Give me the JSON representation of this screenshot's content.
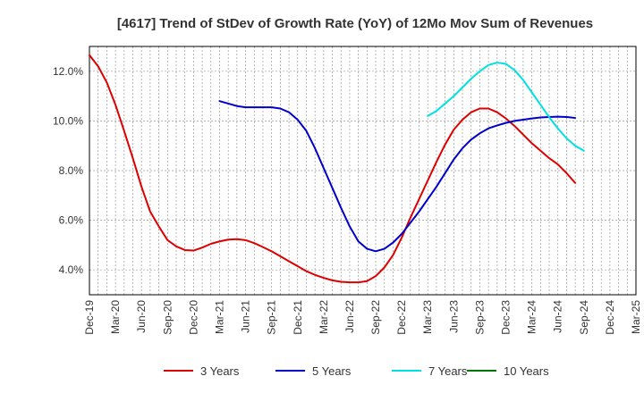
{
  "chart_data": {
    "type": "line",
    "title": "[4617]  Trend of StDev of Growth Rate (YoY) of 12Mo Mov Sum of Revenues",
    "xlabel": "",
    "ylabel": "",
    "ylim": [
      3.0,
      13.0
    ],
    "yticks": [
      4.0,
      6.0,
      8.0,
      10.0,
      12.0
    ],
    "ytick_labels": [
      "4.0%",
      "6.0%",
      "8.0%",
      "10.0%",
      "12.0%"
    ],
    "x_start": "Dec-19",
    "x_end": "Mar-25",
    "n_months": 63,
    "xtick_labels": [
      "Dec-19",
      "Mar-20",
      "Jun-20",
      "Sep-20",
      "Dec-20",
      "Mar-21",
      "Jun-21",
      "Sep-21",
      "Dec-21",
      "Mar-22",
      "Jun-22",
      "Sep-22",
      "Dec-22",
      "Mar-23",
      "Jun-23",
      "Sep-23",
      "Dec-23",
      "Mar-24",
      "Jun-24",
      "Sep-24",
      "Dec-24",
      "Mar-25"
    ],
    "grid": true,
    "legend_position": "bottom",
    "series": [
      {
        "name": "3 Years",
        "color": "#dd0000",
        "start_index": 0,
        "values": [
          12.65,
          12.2,
          11.55,
          10.65,
          9.6,
          8.5,
          7.35,
          6.35,
          5.75,
          5.2,
          4.95,
          4.8,
          4.78,
          4.9,
          5.05,
          5.15,
          5.22,
          5.24,
          5.2,
          5.08,
          4.92,
          4.75,
          4.55,
          4.35,
          4.15,
          3.95,
          3.8,
          3.68,
          3.58,
          3.52,
          3.5,
          3.5,
          3.55,
          3.75,
          4.1,
          4.6,
          5.3,
          6.1,
          6.85,
          7.6,
          8.35,
          9.05,
          9.65,
          10.05,
          10.35,
          10.5,
          10.5,
          10.35,
          10.1,
          9.8,
          9.45,
          9.1,
          8.8,
          8.5,
          8.25,
          7.9,
          7.5
        ]
      },
      {
        "name": "5 Years",
        "color": "#0000cc",
        "start_index": 15,
        "values": [
          10.8,
          10.7,
          10.6,
          10.55,
          10.55,
          10.55,
          10.55,
          10.5,
          10.35,
          10.05,
          9.6,
          8.9,
          8.1,
          7.3,
          6.5,
          5.75,
          5.15,
          4.85,
          4.75,
          4.85,
          5.1,
          5.45,
          5.9,
          6.35,
          6.85,
          7.35,
          7.9,
          8.45,
          8.9,
          9.25,
          9.5,
          9.7,
          9.82,
          9.92,
          10.0,
          10.05,
          10.1,
          10.14,
          10.16,
          10.17,
          10.16,
          10.12
        ]
      },
      {
        "name": "7 Years",
        "color": "#00e0e0",
        "start_index": 39,
        "values": [
          10.2,
          10.4,
          10.7,
          11.0,
          11.35,
          11.7,
          12.0,
          12.25,
          12.35,
          12.3,
          12.05,
          11.65,
          11.15,
          10.65,
          10.15,
          9.7,
          9.3,
          9.0,
          8.8
        ]
      },
      {
        "name": "10 Years",
        "color": "#007700",
        "start_index": 0,
        "values": []
      }
    ]
  }
}
